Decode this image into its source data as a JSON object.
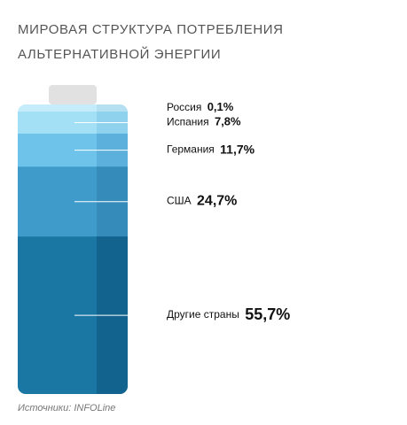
{
  "title_lines": [
    "МИРОВАЯ СТРУКТУРА ПОТРЕБЛЕНИЯ",
    "АЛЬТЕРНАТИВНОЙ ЭНЕРГИИ"
  ],
  "source": "Источники: INFOLine",
  "colors": {
    "cap": "#e1e1e1",
    "leader": "#ffffff"
  },
  "chart_data": {
    "type": "bar",
    "stacked": true,
    "title": "МИРОВАЯ СТРУКТУРА ПОТРЕБЛЕНИЯ АЛЬТЕРНАТИВНОЙ ЭНЕРГИИ",
    "unit": "%",
    "segments": [
      {
        "name": "Россия",
        "value": 0.1,
        "label": "0,1%",
        "color": "#c4ecfa",
        "shade": "#b4e0f2"
      },
      {
        "name": "Испания",
        "value": 7.8,
        "label": "7,8%",
        "color": "#a3e0f6",
        "shade": "#8ed2ee"
      },
      {
        "name": "Германия",
        "value": 11.7,
        "label": "11,7%",
        "color": "#6ec3ea",
        "shade": "#5bb1db"
      },
      {
        "name": "США",
        "value": 24.7,
        "label": "24,7%",
        "color": "#3f9cca",
        "shade": "#358cbb"
      },
      {
        "name": "Другие страны",
        "value": 55.7,
        "label": "55,7%",
        "color": "#1a77a3",
        "shade": "#12648f"
      }
    ]
  }
}
